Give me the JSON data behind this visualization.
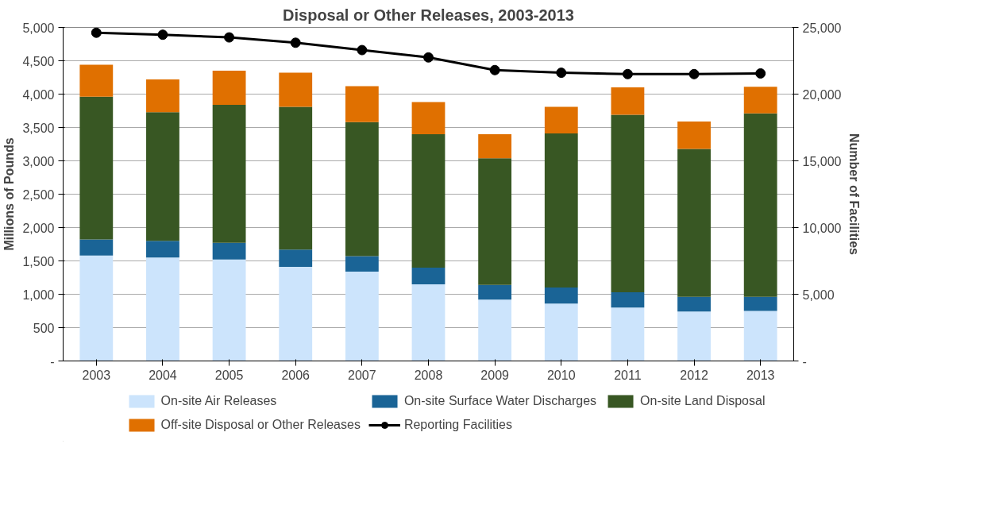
{
  "chart_data": {
    "type": "bar",
    "title": "Disposal or Other Releases, 2003-2013",
    "categories": [
      "2003",
      "2004",
      "2005",
      "2006",
      "2007",
      "2008",
      "2009",
      "2010",
      "2011",
      "2012",
      "2013"
    ],
    "stacked": true,
    "series": [
      {
        "name": "On-site Air Releases",
        "color": "#cce4fc",
        "values": [
          1580,
          1550,
          1520,
          1410,
          1340,
          1150,
          920,
          860,
          800,
          740,
          750
        ]
      },
      {
        "name": "On-site Surface Water Discharges",
        "color": "#1a6496",
        "values": [
          240,
          250,
          250,
          260,
          230,
          250,
          220,
          240,
          230,
          220,
          210
        ]
      },
      {
        "name": "On-site Land Disposal",
        "color": "#385723",
        "values": [
          2140,
          1930,
          2070,
          2140,
          2010,
          2000,
          1900,
          2310,
          2660,
          2220,
          2750
        ]
      },
      {
        "name": "Off-site Disposal or Other Releases",
        "color": "#e07000",
        "values": [
          480,
          490,
          510,
          510,
          540,
          480,
          360,
          400,
          410,
          410,
          400
        ]
      },
      {
        "name": "Reporting Facilities",
        "color": "#000000",
        "type": "line",
        "axis": "y2",
        "marker": "circle",
        "values": [
          24600,
          24450,
          24250,
          23850,
          23300,
          22750,
          21800,
          21600,
          21500,
          21500,
          21550
        ]
      }
    ],
    "ylabel": "Millions of Pounds",
    "y2label": "Number of Facilities",
    "ylim": [
      0,
      5000
    ],
    "yticks": [
      {
        "value": 0,
        "label": "-"
      },
      {
        "value": 500,
        "label": "500"
      },
      {
        "value": 1000,
        "label": "1,000"
      },
      {
        "value": 1500,
        "label": "1,500"
      },
      {
        "value": 2000,
        "label": "2,000"
      },
      {
        "value": 2500,
        "label": "2,500"
      },
      {
        "value": 3000,
        "label": "3,000"
      },
      {
        "value": 3500,
        "label": "3,500"
      },
      {
        "value": 4000,
        "label": "4,000"
      },
      {
        "value": 4500,
        "label": "4,500"
      },
      {
        "value": 5000,
        "label": "5,000"
      }
    ],
    "y2lim": [
      0,
      25000
    ],
    "y2ticks": [
      {
        "value": 0,
        "label": "-"
      },
      {
        "value": 5000,
        "label": "5,000"
      },
      {
        "value": 10000,
        "label": "10,000"
      },
      {
        "value": 15000,
        "label": "15,000"
      },
      {
        "value": 20000,
        "label": "20,000"
      },
      {
        "value": 25000,
        "label": "25,000"
      }
    ],
    "grid": "y",
    "legend": "bottom"
  }
}
